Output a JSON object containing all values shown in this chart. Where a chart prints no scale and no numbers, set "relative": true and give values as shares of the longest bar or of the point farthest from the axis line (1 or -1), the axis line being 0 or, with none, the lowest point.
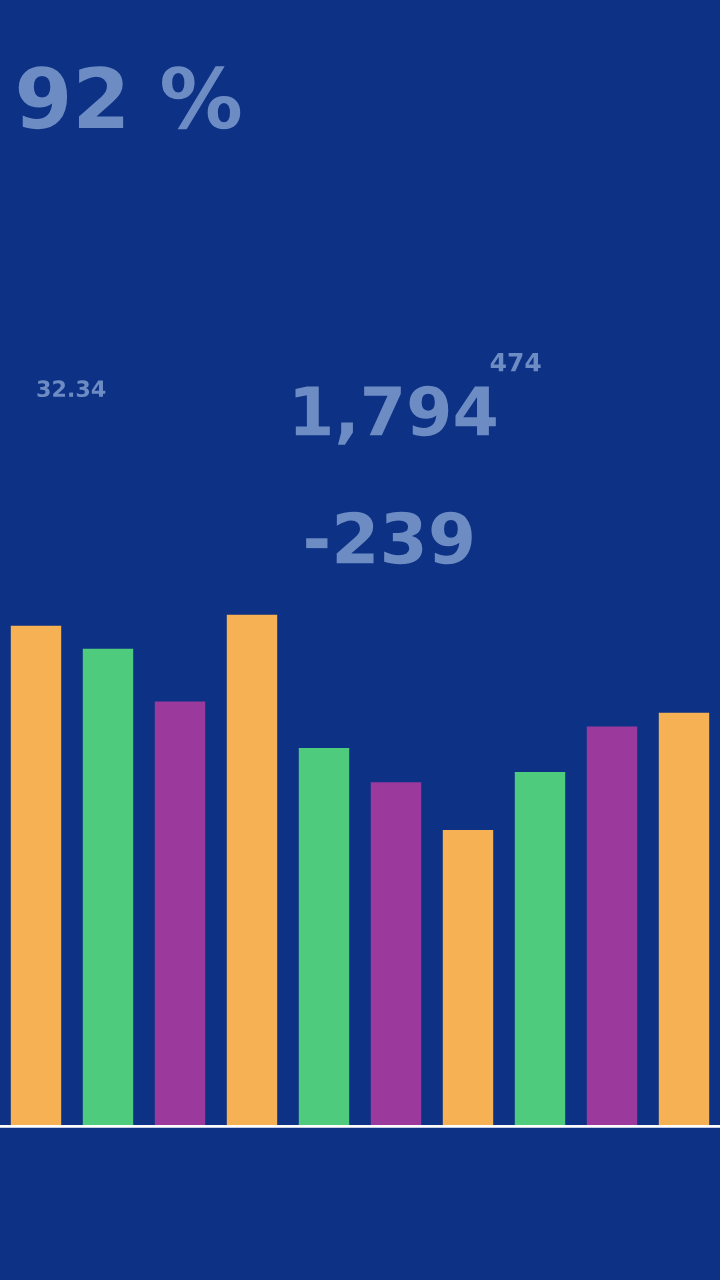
{
  "chart_data": {
    "type": "bar",
    "relative": true,
    "categories": [
      null,
      null,
      null,
      null,
      null,
      null,
      null,
      null,
      null,
      null
    ],
    "tick_labels": false,
    "grid": false,
    "legend": false,
    "values": [
      0.978,
      0.933,
      0.83,
      1,
      0.739,
      0.672,
      0.579,
      0.692,
      0.781,
      0.808
    ],
    "colors": [
      "#f6b155",
      "#4ecb7c",
      "#9b3a9c",
      "#f6b155",
      "#4ecb7c",
      "#9b3a9c",
      "#f6b155",
      "#4ecb7c",
      "#9b3a9c",
      "#f6b155"
    ],
    "annotations": [
      "92 %",
      "1,794",
      "474",
      "32.34",
      "-239"
    ]
  }
}
